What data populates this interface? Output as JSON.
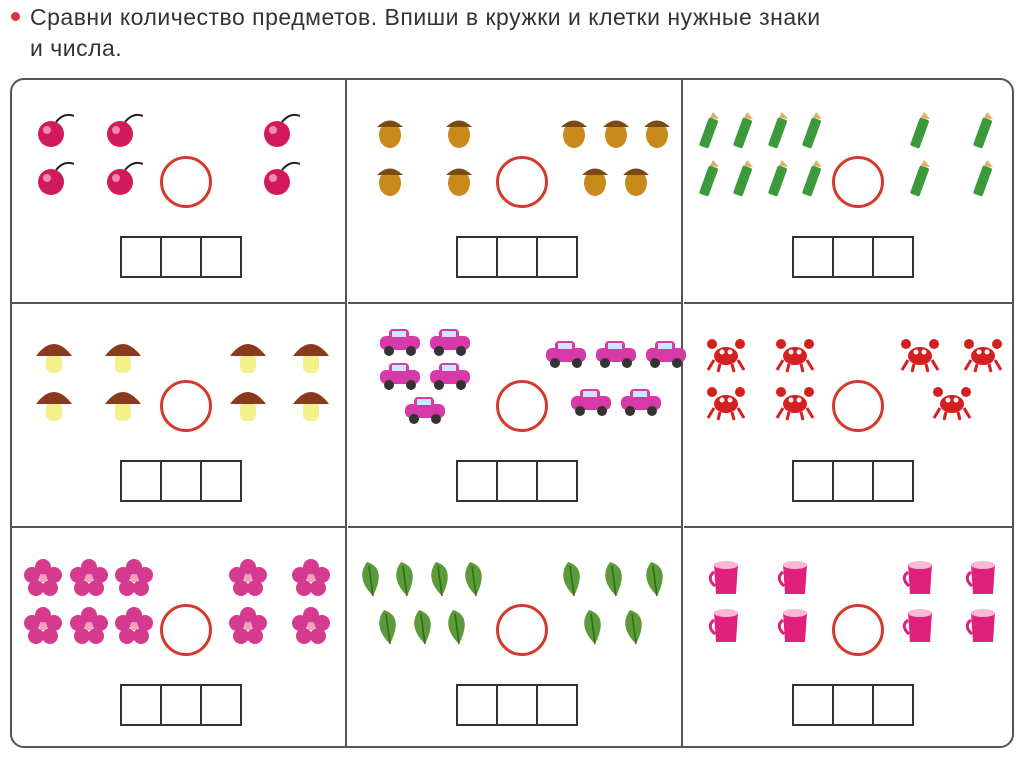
{
  "instruction": {
    "line1": "Сравни количество предметов. Впиши в кружки и клетки нужные знаки",
    "line2": "и числа."
  },
  "accent_color": "#d23a2f",
  "cells": [
    {
      "item": "cherry",
      "left": 4,
      "right": 2
    },
    {
      "item": "acorn",
      "left": 4,
      "right": 5
    },
    {
      "item": "pencil",
      "left": 8,
      "right": 4
    },
    {
      "item": "mushroom",
      "left": 4,
      "right": 4
    },
    {
      "item": "car",
      "left": 5,
      "right": 5
    },
    {
      "item": "crab",
      "left": 4,
      "right": 3
    },
    {
      "item": "flower",
      "left": 6,
      "right": 4
    },
    {
      "item": "leaf",
      "left": 7,
      "right": 5
    },
    {
      "item": "cup",
      "left": 4,
      "right": 4
    }
  ]
}
